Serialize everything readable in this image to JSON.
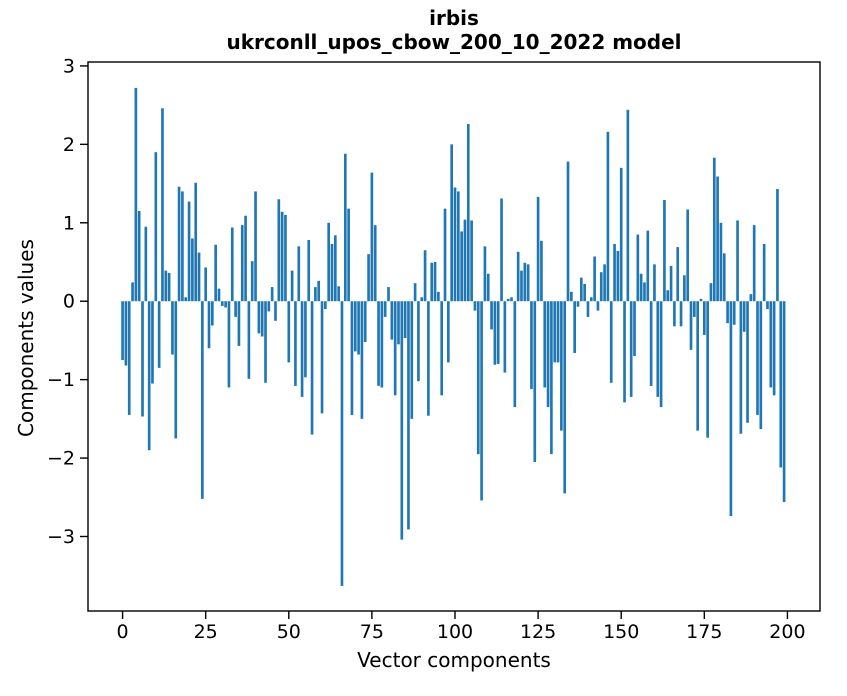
{
  "title": {
    "line1": "irbis",
    "line2": "ukrconll_upos_cbow_200_10_2022 model"
  },
  "chart_data": {
    "type": "bar",
    "title": "irbis\nukrconll_upos_cbow_200_10_2022 model",
    "xlabel": "Vector components",
    "ylabel": "Components values",
    "n_components": 200,
    "xlim": [
      -10.4,
      209.8
    ],
    "ylim": [
      -3.95,
      3.05
    ],
    "xticks": [
      0,
      25,
      50,
      75,
      100,
      125,
      150,
      175,
      200
    ],
    "xtick_labels": [
      "0",
      "25",
      "50",
      "75",
      "100",
      "125",
      "150",
      "175",
      "200"
    ],
    "yticks": [
      3,
      2,
      1,
      0,
      -1,
      -2,
      -3
    ],
    "ytick_labels": [
      "3",
      "2",
      "1",
      "0",
      "−1",
      "−2",
      "−3"
    ],
    "grid": false,
    "legend": null,
    "bar_color": "#1f77b4",
    "bar_width_units": 0.8,
    "categories_note": "x = vector component index 0..199",
    "values": [
      -0.75,
      -0.82,
      -1.45,
      0.24,
      2.72,
      1.15,
      -1.47,
      0.95,
      -1.9,
      -1.05,
      1.9,
      -0.85,
      2.46,
      0.39,
      0.36,
      -0.68,
      -1.75,
      1.46,
      1.4,
      0.05,
      1.27,
      0.8,
      1.51,
      0.62,
      -2.52,
      0.43,
      -0.6,
      -0.31,
      0.72,
      0.16,
      -0.06,
      -0.08,
      -1.1,
      0.94,
      -0.2,
      -0.57,
      0.97,
      1.09,
      -0.99,
      0.51,
      1.4,
      -0.41,
      -0.45,
      -1.04,
      -0.13,
      0.18,
      -0.25,
      1.3,
      1.14,
      1.1,
      -0.78,
      0.39,
      -1.08,
      0.7,
      -1.22,
      -0.97,
      0.78,
      -1.7,
      0.18,
      0.26,
      -1.43,
      -0.1,
      1.0,
      0.73,
      0.84,
      0.19,
      -3.63,
      1.88,
      1.18,
      -1.45,
      -0.64,
      -0.68,
      -1.5,
      -0.52,
      0.6,
      1.64,
      0.97,
      -1.08,
      -1.1,
      -0.2,
      0.18,
      -0.49,
      -1.2,
      -0.55,
      -3.04,
      -0.47,
      -2.91,
      -1.5,
      0.23,
      -1.02,
      0.05,
      0.65,
      -1.46,
      0.49,
      0.5,
      0.12,
      -1.2,
      1.18,
      -0.78,
      2.0,
      1.45,
      1.4,
      0.89,
      1.04,
      2.26,
      1.03,
      -0.12,
      -1.95,
      -2.54,
      0.7,
      0.35,
      -0.36,
      -0.81,
      -0.8,
      1.31,
      -0.91,
      0.03,
      0.05,
      -1.35,
      0.63,
      0.39,
      0.49,
      0.47,
      -1.12,
      -2.05,
      1.33,
      0.77,
      -1.1,
      -1.35,
      -1.95,
      -0.78,
      -0.78,
      -1.65,
      -2.45,
      1.78,
      0.12,
      -0.66,
      -0.07,
      0.3,
      0.22,
      -0.2,
      0.05,
      0.57,
      -0.12,
      0.37,
      0.47,
      2.16,
      -1.04,
      0.73,
      0.64,
      1.7,
      -1.29,
      2.44,
      -1.22,
      -0.7,
      0.85,
      0.35,
      0.24,
      0.9,
      -1.08,
      0.47,
      -1.22,
      -1.35,
      1.29,
      0.14,
      0.45,
      -0.32,
      0.69,
      -0.32,
      0.33,
      1.17,
      -0.62,
      -0.2,
      -1.65,
      0.03,
      -0.43,
      -1.74,
      0.23,
      1.83,
      1.59,
      1.0,
      0.61,
      -0.28,
      -2.74,
      -0.3,
      1.03,
      -1.69,
      -0.39,
      -1.55,
      0.09,
      0.97,
      -1.45,
      -1.63,
      0.73,
      -0.1,
      -1.1,
      -1.2,
      1.43,
      -2.12,
      -2.56
    ]
  }
}
